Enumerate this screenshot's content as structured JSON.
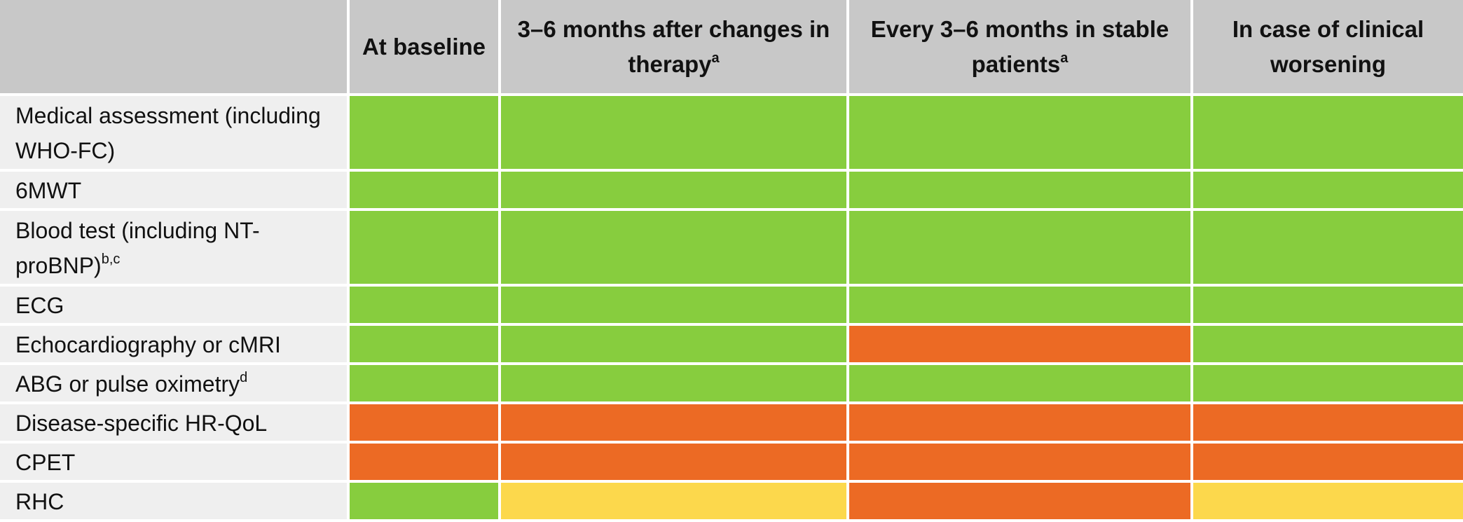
{
  "colors": {
    "green": "#87cd3e",
    "orange": "#ec6a24",
    "yellow": "#fcd84c"
  },
  "header": {
    "corner": "",
    "columns": [
      {
        "text": "At baseline",
        "sup": ""
      },
      {
        "text": "3–6 months after changes in therapy",
        "sup": "a"
      },
      {
        "text": "Every 3–6 months in stable patients",
        "sup": "a"
      },
      {
        "text": "In case of clinical worsening",
        "sup": ""
      }
    ]
  },
  "rows": [
    {
      "label": "Medical assessment (including WHO-FC)",
      "sup": "",
      "tall": true,
      "cells": [
        "green",
        "green",
        "green",
        "green"
      ]
    },
    {
      "label": "6MWT",
      "sup": "",
      "tall": false,
      "cells": [
        "green",
        "green",
        "green",
        "green"
      ]
    },
    {
      "label": "Blood test (including NT-proBNP)",
      "sup": "b,c",
      "tall": true,
      "cells": [
        "green",
        "green",
        "green",
        "green"
      ]
    },
    {
      "label": "ECG",
      "sup": "",
      "tall": false,
      "cells": [
        "green",
        "green",
        "green",
        "green"
      ]
    },
    {
      "label": "Echocardiography or cMRI",
      "sup": "",
      "tall": false,
      "cells": [
        "green",
        "green",
        "orange",
        "green"
      ]
    },
    {
      "label": "ABG or pulse oximetry",
      "sup": "d",
      "tall": false,
      "cells": [
        "green",
        "green",
        "green",
        "green"
      ]
    },
    {
      "label": "Disease-specific HR-QoL",
      "sup": "",
      "tall": false,
      "cells": [
        "orange",
        "orange",
        "orange",
        "orange"
      ]
    },
    {
      "label": "CPET",
      "sup": "",
      "tall": false,
      "cells": [
        "orange",
        "orange",
        "orange",
        "orange"
      ]
    },
    {
      "label": "RHC",
      "sup": "",
      "tall": false,
      "cells": [
        "green",
        "yellow",
        "orange",
        "yellow"
      ]
    }
  ]
}
